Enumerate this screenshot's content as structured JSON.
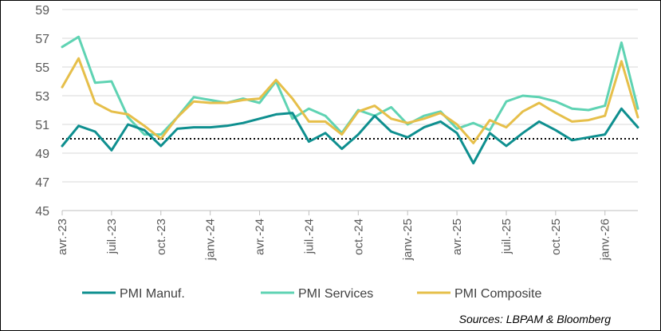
{
  "chart_data": {
    "type": "line",
    "title": "",
    "xlabel": "",
    "ylabel": "",
    "ylim": [
      45,
      59
    ],
    "yticks": [
      45,
      47,
      49,
      51,
      53,
      55,
      57,
      59
    ],
    "reference_line": 50,
    "grid": "horizontal",
    "x_tick_labels": [
      "avr.-23",
      "juil.-23",
      "oct.-23",
      "janv.-24",
      "avr.-24",
      "juil.-24",
      "oct.-24",
      "janv.-25",
      "avr.-25",
      "juil.-25",
      "oct.-25",
      "janv.-26"
    ],
    "x_tick_index": [
      0,
      3,
      6,
      9,
      12,
      15,
      18,
      21,
      24,
      27,
      30,
      33
    ],
    "x": [
      "2023-04",
      "2023-05",
      "2023-06",
      "2023-07",
      "2023-08",
      "2023-09",
      "2023-10",
      "2023-11",
      "2023-12",
      "2024-01",
      "2024-02",
      "2024-03",
      "2024-04",
      "2024-05",
      "2024-06",
      "2024-07",
      "2024-08",
      "2024-09",
      "2024-10",
      "2024-11",
      "2024-12",
      "2025-01",
      "2025-02",
      "2025-03",
      "2025-04",
      "2025-05",
      "2025-06",
      "2025-07",
      "2025-08",
      "2025-09",
      "2025-10",
      "2025-11",
      "2025-12",
      "2026-01",
      "2026-02",
      "2026-03"
    ],
    "series": [
      {
        "name": "PMI Manuf.",
        "color": "#0e8f8f",
        "values": [
          49.5,
          50.9,
          50.5,
          49.2,
          51.0,
          50.6,
          49.5,
          50.7,
          50.8,
          50.8,
          50.9,
          51.1,
          51.4,
          51.7,
          51.8,
          49.8,
          50.4,
          49.3,
          50.3,
          51.6,
          50.5,
          50.1,
          50.8,
          51.2,
          50.4,
          48.3,
          50.4,
          49.5,
          50.4,
          51.2,
          50.6,
          49.9,
          50.1,
          50.3,
          52.1,
          50.8
        ]
      },
      {
        "name": "PMI Services",
        "color": "#5fd3b3",
        "values": [
          56.4,
          57.1,
          53.9,
          54.0,
          51.5,
          50.3,
          50.3,
          51.5,
          52.9,
          52.7,
          52.5,
          52.8,
          52.5,
          54.0,
          51.4,
          52.1,
          51.6,
          50.4,
          52.0,
          51.6,
          52.2,
          51.0,
          51.6,
          51.9,
          50.7,
          51.1,
          50.6,
          52.6,
          53.0,
          52.9,
          52.6,
          52.1,
          52.0,
          52.3,
          56.7,
          52.1
        ]
      },
      {
        "name": "PMI  Composite",
        "color": "#e6bf4a",
        "values": [
          53.6,
          55.6,
          52.5,
          51.9,
          51.7,
          50.9,
          50.0,
          51.5,
          52.6,
          52.5,
          52.5,
          52.7,
          52.8,
          54.1,
          52.8,
          51.2,
          51.2,
          50.3,
          51.9,
          52.3,
          51.4,
          51.1,
          51.4,
          51.8,
          51.0,
          49.7,
          51.3,
          50.8,
          51.9,
          52.5,
          51.8,
          51.2,
          51.3,
          51.6,
          55.4,
          51.5
        ]
      }
    ]
  },
  "source_text": "Sources: LBPAM & Bloomberg"
}
